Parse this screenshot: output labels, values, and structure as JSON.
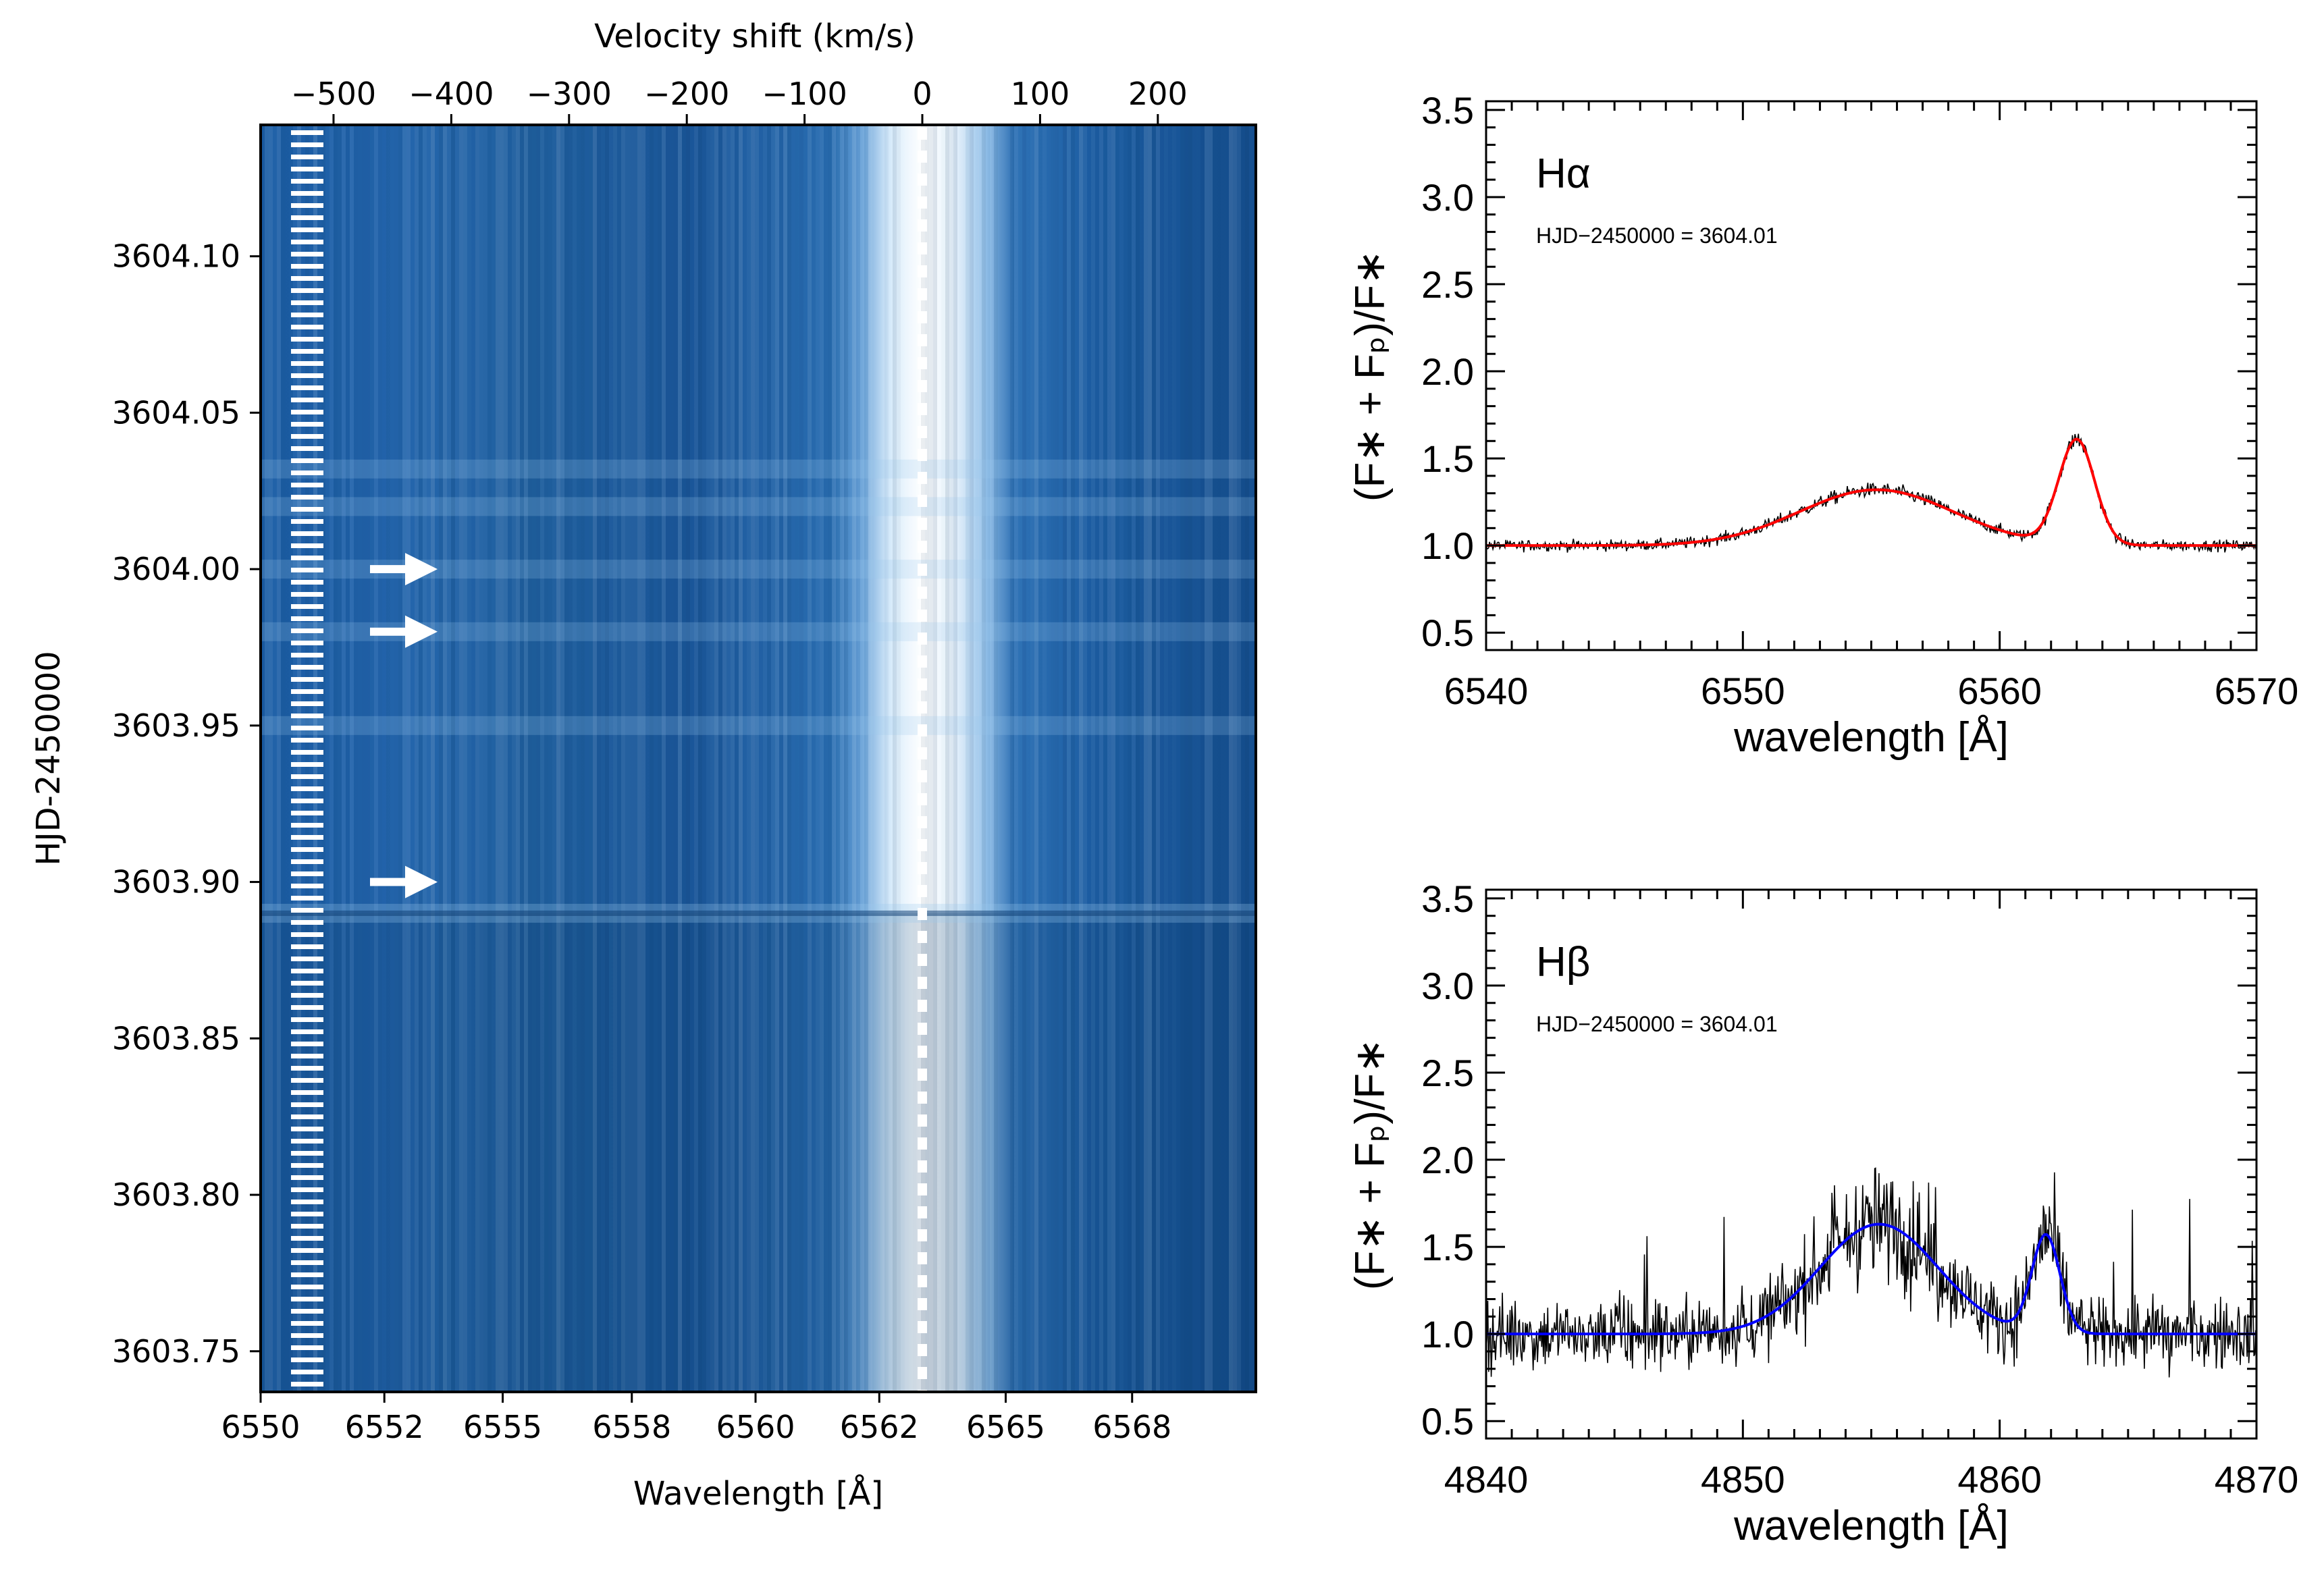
{
  "chart_data": [
    {
      "type": "heatmap",
      "xlabel": "Wavelength [Å]",
      "ylabel": "HJD-2450000",
      "top_xlabel": "Velocity shift (km/s)",
      "xlim": [
        6550.0,
        6568.5
      ],
      "ylim": [
        3603.737,
        3604.142
      ],
      "x_ticks": [
        {
          "value": 6550.0,
          "label": "6550"
        },
        {
          "value": 6552.3,
          "label": "6552"
        },
        {
          "value": 6554.5,
          "label": "6555"
        },
        {
          "value": 6556.9,
          "label": "6558"
        },
        {
          "value": 6559.2,
          "label": "6560"
        },
        {
          "value": 6561.5,
          "label": "6562"
        },
        {
          "value": 6563.85,
          "label": "6565"
        },
        {
          "value": 6566.2,
          "label": "6568"
        }
      ],
      "y_ticks": [
        {
          "value": 3603.75,
          "label": "3603.75"
        },
        {
          "value": 3603.8,
          "label": "3603.80"
        },
        {
          "value": 3603.85,
          "label": "3603.85"
        },
        {
          "value": 3603.9,
          "label": "3603.90"
        },
        {
          "value": 3603.95,
          "label": "3603.95"
        },
        {
          "value": 3604.0,
          "label": "3604.00"
        },
        {
          "value": 3604.05,
          "label": "3604.05"
        },
        {
          "value": 3604.1,
          "label": "3604.10"
        }
      ],
      "top_ticks": [
        {
          "value": -500,
          "label": "−500"
        },
        {
          "value": -400,
          "label": "−400"
        },
        {
          "value": -300,
          "label": "−300"
        },
        {
          "value": -200,
          "label": "−200"
        },
        {
          "value": -100,
          "label": "−100"
        },
        {
          "value": 0,
          "label": "0"
        },
        {
          "value": 100,
          "label": "100"
        },
        {
          "value": 200,
          "label": "200"
        }
      ],
      "rest_wavelength": 6562.8,
      "velocity_zero_wavelength": 6562.3,
      "emission_center": 6562.3,
      "arrows_hjd": [
        3604.0,
        3603.98,
        3603.9
      ],
      "flare_rows_hjd": [
        3603.89,
        3603.95,
        3603.98,
        3604.0,
        3604.02,
        3604.032
      ],
      "colors": {
        "dark": "#0d4c8f",
        "mid": "#2a6ab0",
        "light": "#8fbee8",
        "peak": "#ffffff"
      }
    },
    {
      "type": "line",
      "line_label": "Hα",
      "annotation": "HJD−2450000 = 3604.01",
      "xlabel": "wavelength [Å]",
      "ylabel": "(F∗ + Fₚ)/F∗",
      "xlim": [
        6540,
        6570
      ],
      "ylim": [
        0.4,
        3.55
      ],
      "x_ticks": [
        6540,
        6550,
        6560,
        6570
      ],
      "y_ticks": [
        0.5,
        1.0,
        1.5,
        2.0,
        2.5,
        3.0,
        3.5
      ],
      "series": [
        {
          "kind": "observed",
          "color": "#000000"
        },
        {
          "kind": "fit",
          "color": "#ff0000"
        }
      ],
      "fit_components": [
        {
          "center": 6555.2,
          "amplitude": 0.32,
          "sigma": 3.0
        },
        {
          "center": 6563.0,
          "amplitude": 0.6,
          "sigma": 0.7
        }
      ],
      "noise_level": 0.03
    },
    {
      "type": "line",
      "line_label": "Hβ",
      "annotation": "HJD−2450000 = 3604.01",
      "xlabel": "wavelength [Å]",
      "ylabel": "(F∗ + Fₚ)/F∗",
      "xlim": [
        4840,
        4870
      ],
      "ylim": [
        0.4,
        3.55
      ],
      "x_ticks": [
        4840,
        4850,
        4860,
        4870
      ],
      "y_ticks": [
        0.5,
        1.0,
        1.5,
        2.0,
        2.5,
        3.0,
        3.5
      ],
      "series": [
        {
          "kind": "observed",
          "color": "#000000"
        },
        {
          "kind": "fit",
          "color": "#0000ff"
        }
      ],
      "fit_components": [
        {
          "center": 4855.3,
          "amplitude": 0.63,
          "sigma": 2.3
        },
        {
          "center": 4861.8,
          "amplitude": 0.56,
          "sigma": 0.55
        }
      ],
      "noise_level": 0.2
    }
  ]
}
